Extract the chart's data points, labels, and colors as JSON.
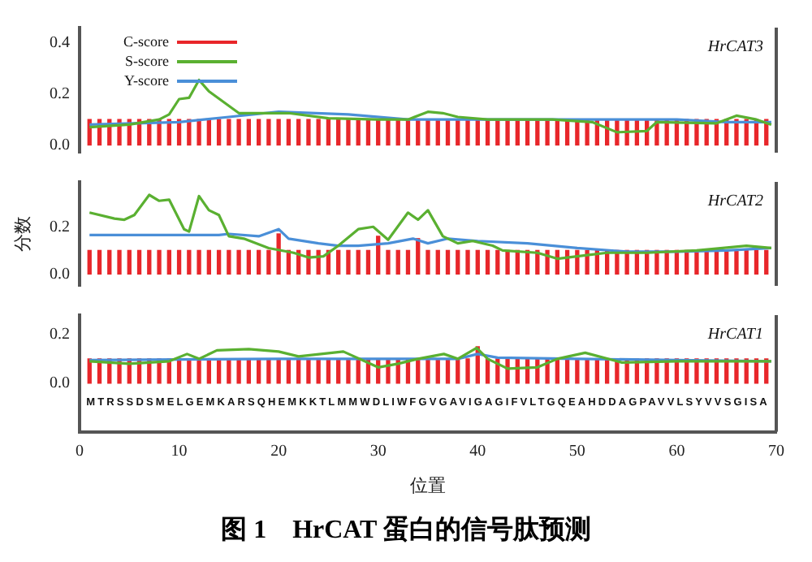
{
  "chart_data": [
    {
      "type": "bar",
      "xlim": [
        0,
        70
      ],
      "ylim": [
        -0.03,
        0.46
      ],
      "yticks": [
        {
          "value": 0,
          "label": "0.0"
        },
        {
          "value": 0.2,
          "label": "0.2"
        },
        {
          "value": 0.4,
          "label": "0.4"
        }
      ],
      "tick_labels": "y",
      "legend": "top left",
      "x": [
        1,
        2,
        3,
        4,
        5,
        6,
        7,
        8,
        9,
        10,
        11,
        12,
        13,
        14,
        15,
        16,
        17,
        18,
        19,
        20,
        21,
        22,
        23,
        24,
        25,
        26,
        27,
        28,
        29,
        30,
        31,
        32,
        33,
        34,
        35,
        36,
        37,
        38,
        39,
        40,
        41,
        42,
        43,
        44,
        45,
        46,
        47,
        48,
        49,
        50,
        51,
        52,
        53,
        54,
        55,
        56,
        57,
        58,
        59,
        60,
        61,
        62,
        63,
        64,
        65,
        66,
        67,
        68,
        69
      ],
      "series": [
        {
          "name": "C-score",
          "color": "#e8262a",
          "values": [
            0.1,
            0.1,
            0.1,
            0.1,
            0.1,
            0.1,
            0.1,
            0.1,
            0.1,
            0.1,
            0.1,
            0.1,
            0.1,
            0.1,
            0.1,
            0.1,
            0.1,
            0.1,
            0.1,
            0.1,
            0.1,
            0.1,
            0.1,
            0.1,
            0.1,
            0.1,
            0.1,
            0.1,
            0.1,
            0.1,
            0.1,
            0.1,
            0.1,
            0.1,
            0.1,
            0.1,
            0.1,
            0.1,
            0.1,
            0.1,
            0.1,
            0.1,
            0.1,
            0.1,
            0.1,
            0.1,
            0.1,
            0.1,
            0.1,
            0.1,
            0.1,
            0.1,
            0.1,
            0.1,
            0.1,
            0.1,
            0.1,
            0.1,
            0.1,
            0.1,
            0.1,
            0.1,
            0.1,
            0.1,
            0.1,
            0.1,
            0.1,
            0.1,
            0.1
          ]
        },
        {
          "name": "S-score",
          "type": "line",
          "color": "#5ab031",
          "x": [
            1,
            5,
            8,
            9,
            10,
            11,
            12,
            13,
            16,
            21,
            25,
            30,
            33,
            35,
            36.5,
            38,
            41,
            47.5,
            51.5,
            54,
            57,
            58,
            64,
            66,
            68,
            69.5
          ],
          "values": [
            0.07,
            0.08,
            0.1,
            0.12,
            0.18,
            0.185,
            0.255,
            0.21,
            0.125,
            0.125,
            0.105,
            0.1,
            0.1,
            0.13,
            0.125,
            0.11,
            0.1,
            0.1,
            0.09,
            0.05,
            0.055,
            0.09,
            0.085,
            0.115,
            0.1,
            0.08
          ]
        },
        {
          "name": "Y-score",
          "type": "line",
          "color": "#4a8fd8",
          "x": [
            1,
            10,
            15,
            20,
            27,
            33,
            40,
            50,
            60,
            65,
            69.5
          ],
          "values": [
            0.08,
            0.09,
            0.11,
            0.13,
            0.12,
            0.1,
            0.1,
            0.1,
            0.1,
            0.09,
            0.09
          ]
        }
      ],
      "annotations": [
        "HrCAT3"
      ]
    },
    {
      "type": "bar",
      "xlim": [
        0,
        70
      ],
      "ylim": [
        -0.05,
        0.39
      ],
      "yticks": [
        {
          "value": 0,
          "label": "0.0"
        },
        {
          "value": 0.2,
          "label": "0.2"
        }
      ],
      "tick_labels": "y",
      "ylabel": "分数",
      "x": [
        1,
        2,
        3,
        4,
        5,
        6,
        7,
        8,
        9,
        10,
        11,
        12,
        13,
        14,
        15,
        16,
        17,
        18,
        19,
        20,
        21,
        22,
        23,
        24,
        25,
        26,
        27,
        28,
        29,
        30,
        31,
        32,
        33,
        34,
        35,
        36,
        37,
        38,
        39,
        40,
        41,
        42,
        43,
        44,
        45,
        46,
        47,
        48,
        49,
        50,
        51,
        52,
        53,
        54,
        55,
        56,
        57,
        58,
        59,
        60,
        61,
        62,
        63,
        64,
        65,
        66,
        67,
        68,
        69
      ],
      "series": [
        {
          "color": "#e8262a",
          "values": [
            0.1,
            0.1,
            0.1,
            0.1,
            0.1,
            0.1,
            0.1,
            0.1,
            0.1,
            0.1,
            0.1,
            0.1,
            0.1,
            0.1,
            0.1,
            0.1,
            0.1,
            0.1,
            0.1,
            0.17,
            0.1,
            0.1,
            0.1,
            0.1,
            0.1,
            0.1,
            0.1,
            0.1,
            0.1,
            0.16,
            0.1,
            0.1,
            0.1,
            0.15,
            0.1,
            0.1,
            0.1,
            0.1,
            0.1,
            0.1,
            0.1,
            0.1,
            0.1,
            0.1,
            0.1,
            0.1,
            0.1,
            0.1,
            0.1,
            0.1,
            0.1,
            0.1,
            0.1,
            0.1,
            0.1,
            0.1,
            0.1,
            0.1,
            0.1,
            0.1,
            0.1,
            0.1,
            0.1,
            0.1,
            0.1,
            0.1,
            0.1,
            0.1,
            0.1
          ]
        },
        {
          "type": "line",
          "color": "#5ab031",
          "x": [
            1,
            3.5,
            4.5,
            5.5,
            7,
            8,
            9,
            10.5,
            11,
            12,
            13,
            14,
            15,
            16.5,
            19,
            21.5,
            23,
            24.5,
            26,
            28,
            29.5,
            31,
            33,
            34,
            35,
            36.5,
            38,
            39.5,
            41.5,
            42.5,
            46,
            48,
            51,
            53,
            57,
            62,
            67,
            69.5
          ],
          "values": [
            0.26,
            0.235,
            0.23,
            0.25,
            0.335,
            0.31,
            0.315,
            0.19,
            0.18,
            0.33,
            0.27,
            0.25,
            0.16,
            0.15,
            0.11,
            0.09,
            0.07,
            0.075,
            0.12,
            0.19,
            0.2,
            0.145,
            0.26,
            0.23,
            0.27,
            0.16,
            0.13,
            0.14,
            0.12,
            0.1,
            0.09,
            0.065,
            0.08,
            0.09,
            0.09,
            0.1,
            0.12,
            0.11
          ]
        },
        {
          "type": "line",
          "color": "#4a8fd8",
          "x": [
            1,
            14,
            15,
            18,
            20,
            21,
            24,
            26,
            28,
            31,
            33.5,
            35,
            37,
            40,
            45,
            50,
            55,
            60,
            65,
            69.5
          ],
          "values": [
            0.165,
            0.165,
            0.17,
            0.16,
            0.19,
            0.15,
            0.13,
            0.12,
            0.12,
            0.13,
            0.15,
            0.13,
            0.15,
            0.14,
            0.13,
            0.11,
            0.095,
            0.095,
            0.1,
            0.11
          ]
        }
      ],
      "annotations": [
        "HrCAT2"
      ]
    },
    {
      "type": "bar",
      "xlim": [
        0,
        70
      ],
      "xticks": [
        0,
        10,
        20,
        30,
        40,
        50,
        60,
        70
      ],
      "ylim": [
        -0.2,
        0.28
      ],
      "yticks": [
        {
          "value": 0,
          "label": "0.0"
        },
        {
          "value": 0.2,
          "label": "0.2"
        }
      ],
      "xlabel": "位置",
      "x": [
        1,
        2,
        3,
        4,
        5,
        6,
        7,
        8,
        9,
        10,
        11,
        12,
        13,
        14,
        15,
        16,
        17,
        18,
        19,
        20,
        21,
        22,
        23,
        24,
        25,
        26,
        27,
        28,
        29,
        30,
        31,
        32,
        33,
        34,
        35,
        36,
        37,
        38,
        39,
        40,
        41,
        42,
        43,
        44,
        45,
        46,
        47,
        48,
        49,
        50,
        51,
        52,
        53,
        54,
        55,
        56,
        57,
        58,
        59,
        60,
        61,
        62,
        63,
        64,
        65,
        66,
        67,
        68,
        69
      ],
      "series": [
        {
          "color": "#e8262a",
          "values": [
            0.1,
            0.1,
            0.1,
            0.1,
            0.1,
            0.1,
            0.1,
            0.1,
            0.1,
            0.1,
            0.1,
            0.1,
            0.1,
            0.1,
            0.1,
            0.1,
            0.1,
            0.1,
            0.1,
            0.1,
            0.1,
            0.1,
            0.1,
            0.1,
            0.1,
            0.1,
            0.1,
            0.1,
            0.1,
            0.1,
            0.1,
            0.1,
            0.1,
            0.1,
            0.1,
            0.1,
            0.1,
            0.1,
            0.1,
            0.15,
            0.1,
            0.1,
            0.1,
            0.1,
            0.1,
            0.1,
            0.1,
            0.1,
            0.1,
            0.1,
            0.1,
            0.1,
            0.1,
            0.1,
            0.1,
            0.1,
            0.1,
            0.1,
            0.1,
            0.1,
            0.1,
            0.1,
            0.1,
            0.1,
            0.1,
            0.1,
            0.1,
            0.1,
            0.1
          ]
        },
        {
          "type": "line",
          "color": "#5ab031",
          "x": [
            1,
            5,
            9,
            10.8,
            12,
            13.8,
            17,
            20,
            22,
            26.5,
            30,
            32,
            34,
            36.6,
            38,
            39.9,
            41,
            43,
            46,
            48,
            50.8,
            54.5,
            60,
            65,
            69.5
          ],
          "values": [
            0.09,
            0.08,
            0.09,
            0.12,
            0.1,
            0.135,
            0.14,
            0.13,
            0.11,
            0.13,
            0.065,
            0.08,
            0.1,
            0.12,
            0.1,
            0.145,
            0.1,
            0.06,
            0.065,
            0.1,
            0.125,
            0.085,
            0.09,
            0.09,
            0.09
          ]
        },
        {
          "type": "line",
          "color": "#4a8fd8",
          "x": [
            1,
            20,
            38,
            40,
            42,
            50,
            60,
            69.5
          ],
          "values": [
            0.095,
            0.1,
            0.1,
            0.12,
            0.105,
            0.1,
            0.095,
            0.09
          ]
        }
      ],
      "annotations": [
        "HrCAT1",
        "MTRSSDSMELGEMKARSQHEMKKTLMMWDLIWFGVGAVIGAGIFVLTGQEAHDDAGPAVVLSYVVSGISA",
        "图 1　HrCAT 蛋白的信号肽预测"
      ]
    }
  ]
}
